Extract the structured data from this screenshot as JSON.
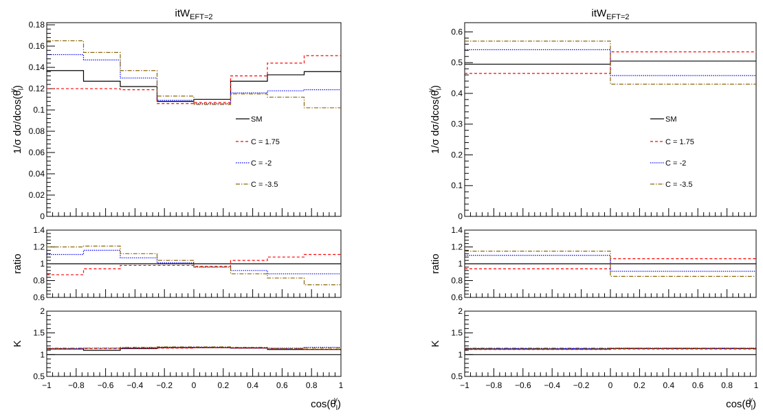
{
  "chart_data": [
    {
      "type": "line",
      "step": true,
      "title": "itW",
      "title_subscript": "EFT=2",
      "xlabel": "cos(θ",
      "xlabel_sub": "l",
      "xlabel_sup": "y",
      "xlabel_close": ")",
      "xlim": [
        -1,
        1
      ],
      "x_ticks": [
        "−1",
        "−0.8",
        "−0.6",
        "−0.4",
        "−0.2",
        "0",
        "0.2",
        "0.4",
        "0.6",
        "0.8",
        "1"
      ],
      "bin_edges": [
        -1,
        -0.75,
        -0.5,
        -0.25,
        0,
        0.25,
        0.5,
        0.75,
        1
      ],
      "panels": [
        {
          "role": "main",
          "ylabel": "1/σ dσ/dcos(θ",
          "ylabel_sub": "l",
          "ylabel_sup": "y",
          "ylabel_close": ")",
          "ylim": [
            0,
            0.182
          ],
          "y_ticks": [
            "0",
            "0.02",
            "0.04",
            "0.06",
            "0.08",
            "0.1",
            "0.12",
            "0.14",
            "0.16",
            "0.18"
          ],
          "series": [
            {
              "name": "SM",
              "color": "#000000",
              "dash": "solid",
              "values": [
                0.137,
                0.127,
                0.122,
                0.108,
                0.11,
                0.127,
                0.133,
                0.136
              ]
            },
            {
              "name": "C = 1.75",
              "color": "#ff0000",
              "dash": "dashed",
              "values": [
                0.12,
                0.12,
                0.119,
                0.106,
                0.107,
                0.132,
                0.144,
                0.151
              ]
            },
            {
              "name": "C = -2",
              "color": "#0000ff",
              "dash": "dotted",
              "values": [
                0.152,
                0.147,
                0.13,
                0.109,
                0.106,
                0.116,
                0.118,
                0.119
              ]
            },
            {
              "name": "C = -3.5",
              "color": "#8b6508",
              "dash": "dashdot",
              "values": [
                0.165,
                0.154,
                0.137,
                0.113,
                0.105,
                0.115,
                0.112,
                0.102
              ]
            }
          ]
        },
        {
          "role": "ratio",
          "ylabel": "ratio",
          "ylim": [
            0.6,
            1.4
          ],
          "y_ticks": [
            "0.6",
            "0.8",
            "1",
            "1.2",
            "1.4"
          ],
          "series": [
            {
              "color": "#000000",
              "dash": "solid",
              "values": [
                1,
                1,
                1,
                1,
                1,
                1,
                1,
                1
              ]
            },
            {
              "color": "#ff0000",
              "dash": "dashed",
              "values": [
                0.87,
                0.94,
                0.98,
                0.98,
                0.97,
                1.04,
                1.08,
                1.11
              ]
            },
            {
              "color": "#0000ff",
              "dash": "dotted",
              "values": [
                1.11,
                1.16,
                1.07,
                1.01,
                0.96,
                0.92,
                0.88,
                0.88
              ]
            },
            {
              "color": "#8b6508",
              "dash": "dashdot",
              "values": [
                1.2,
                1.21,
                1.12,
                1.04,
                0.96,
                0.88,
                0.83,
                0.75
              ]
            }
          ]
        },
        {
          "role": "k",
          "ylabel": "K",
          "ylim": [
            0.5,
            2
          ],
          "y_ticks": [
            "0.5",
            "1",
            "1.5",
            "2"
          ],
          "series": [
            {
              "color": "#000000",
              "dash": "solid",
              "values": [
                1.13,
                1.1,
                1.14,
                1.16,
                1.16,
                1.15,
                1.12,
                1.12
              ]
            },
            {
              "color": "#ff0000",
              "dash": "dashed",
              "values": [
                1.13,
                1.14,
                1.15,
                1.15,
                1.16,
                1.15,
                1.14,
                1.12
              ]
            },
            {
              "color": "#0000ff",
              "dash": "dotted",
              "values": [
                1.14,
                1.15,
                1.16,
                1.17,
                1.17,
                1.16,
                1.15,
                1.17
              ]
            },
            {
              "color": "#8b6508",
              "dash": "dashdot",
              "values": [
                1.15,
                1.15,
                1.17,
                1.18,
                1.18,
                1.17,
                1.14,
                1.15
              ]
            },
            {
              "color": "#000000",
              "dash": "solid",
              "values": [
                1,
                1,
                1,
                1,
                1,
                1,
                1,
                1
              ]
            }
          ]
        }
      ]
    },
    {
      "type": "line",
      "step": true,
      "title": "itW",
      "title_subscript": "EFT=2",
      "xlabel": "cos(θ",
      "xlabel_sub": "l",
      "xlabel_sup": "y",
      "xlabel_close": ")",
      "xlim": [
        -1,
        1
      ],
      "x_ticks": [
        "−1",
        "−0.8",
        "−0.6",
        "−0.4",
        "−0.2",
        "0",
        "0.2",
        "0.4",
        "0.6",
        "0.8",
        "1"
      ],
      "bin_edges": [
        -1,
        0,
        1
      ],
      "panels": [
        {
          "role": "main",
          "ylabel": "1/σ dσ/dcos(θ",
          "ylabel_sub": "l",
          "ylabel_sup": "y",
          "ylabel_close": ")",
          "ylim": [
            0,
            0.63
          ],
          "y_ticks": [
            "0",
            "0.1",
            "0.2",
            "0.3",
            "0.4",
            "0.5",
            "0.6"
          ],
          "series": [
            {
              "name": "SM",
              "color": "#000000",
              "dash": "solid",
              "values": [
                0.495,
                0.505
              ]
            },
            {
              "name": "C = 1.75",
              "color": "#ff0000",
              "dash": "dashed",
              "values": [
                0.465,
                0.535
              ]
            },
            {
              "name": "C = -2",
              "color": "#0000ff",
              "dash": "dotted",
              "values": [
                0.542,
                0.458
              ]
            },
            {
              "name": "C = -3.5",
              "color": "#8b6508",
              "dash": "dashdot",
              "values": [
                0.57,
                0.43
              ]
            }
          ]
        },
        {
          "role": "ratio",
          "ylabel": "ratio",
          "ylim": [
            0.6,
            1.4
          ],
          "y_ticks": [
            "0.6",
            "0.8",
            "1",
            "1.2",
            "1.4"
          ],
          "series": [
            {
              "color": "#000000",
              "dash": "solid",
              "values": [
                1,
                1
              ]
            },
            {
              "color": "#ff0000",
              "dash": "dashed",
              "values": [
                0.94,
                1.06
              ]
            },
            {
              "color": "#0000ff",
              "dash": "dotted",
              "values": [
                1.1,
                0.91
              ]
            },
            {
              "color": "#8b6508",
              "dash": "dashdot",
              "values": [
                1.15,
                0.85
              ]
            }
          ]
        },
        {
          "role": "k",
          "ylabel": "K",
          "ylim": [
            0.5,
            2
          ],
          "y_ticks": [
            "0.5",
            "1",
            "1.5",
            "2"
          ],
          "series": [
            {
              "color": "#000000",
              "dash": "solid",
              "values": [
                1.13,
                1.14
              ]
            },
            {
              "color": "#ff0000",
              "dash": "dashed",
              "values": [
                1.12,
                1.13
              ]
            },
            {
              "color": "#0000ff",
              "dash": "dotted",
              "values": [
                1.14,
                1.15
              ]
            },
            {
              "color": "#8b6508",
              "dash": "dashdot",
              "values": [
                1.15,
                1.15
              ]
            },
            {
              "color": "#000000",
              "dash": "solid",
              "values": [
                1,
                1
              ]
            }
          ]
        }
      ]
    }
  ]
}
